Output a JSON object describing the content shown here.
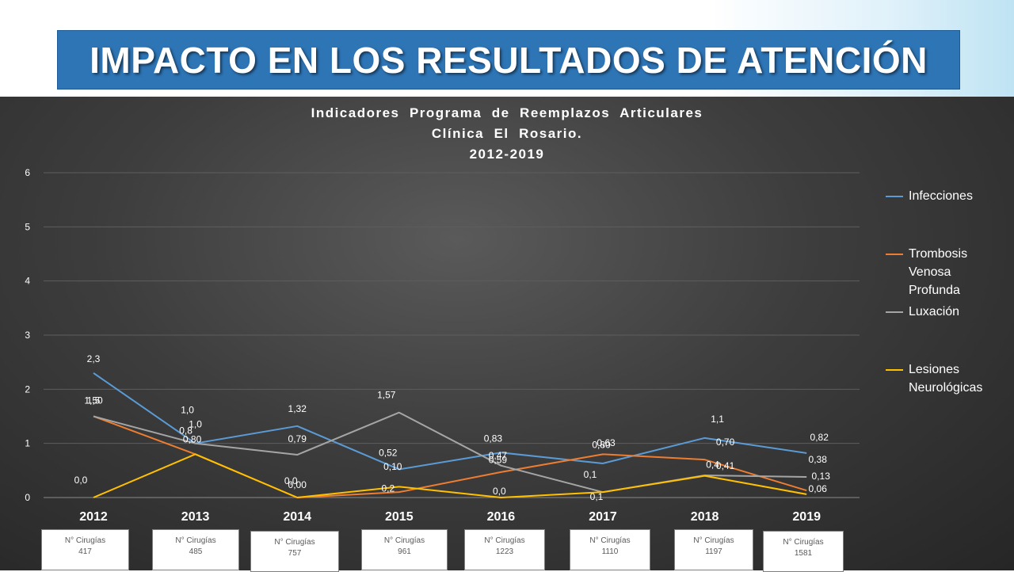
{
  "slide_title": "IMPACTO EN LOS RESULTADOS DE ATENCIÓN",
  "chart_data": {
    "type": "line",
    "title_lines": [
      "Indicadores  Programa  de  Reemplazos  Articulares",
      "Clínica  El  Rosario.",
      "2012-2019"
    ],
    "categories": [
      "2012",
      "2013",
      "2014",
      "2015",
      "2016",
      "2017",
      "2018",
      "2019"
    ],
    "y_ticks": [
      "0",
      "1",
      "2",
      "3",
      "4",
      "5",
      "6"
    ],
    "ylim": [
      0,
      6
    ],
    "grid": true,
    "legend_position": "right",
    "series": [
      {
        "name": "Infecciones",
        "color": "#5b9bd5",
        "values": [
          2.3,
          1.0,
          1.32,
          0.52,
          0.83,
          0.63,
          1.1,
          0.82
        ],
        "labels": [
          "2,3",
          "1,0",
          "1,32",
          "0,52",
          "0,83",
          "0,63",
          "1,1",
          "0,82"
        ]
      },
      {
        "name": "Trombosis Venosa Profunda",
        "color": "#ed7d31",
        "values": [
          1.5,
          0.8,
          0.0,
          0.1,
          0.47,
          0.8,
          0.7,
          0.13
        ],
        "labels": [
          "1,5",
          "0,8",
          "0,0",
          "0,10",
          "0,47",
          "0,80",
          "0,70",
          "0,13"
        ]
      },
      {
        "name": "Luxación",
        "color": "#a5a5a5",
        "values": [
          1.5,
          1.0,
          0.79,
          1.57,
          0.59,
          0.1,
          0.41,
          0.38
        ],
        "labels": [
          "1,50",
          "1,0",
          "0,79",
          "1,57",
          "0,59",
          "0,1",
          "0,41",
          "0,38"
        ]
      },
      {
        "name": "Lesiones Neurológicas",
        "color": "#ffc000",
        "values": [
          0.0,
          0.8,
          0.0,
          0.2,
          0.0,
          0.1,
          0.4,
          0.06
        ],
        "labels": [
          "0,0",
          "0,80",
          "0,00",
          "0,2",
          "0,0",
          "0,1",
          "0,4",
          "0,06"
        ]
      }
    ]
  },
  "legend": {
    "items": [
      {
        "lines": [
          "Infecciones"
        ],
        "color": "#5b9bd5"
      },
      {
        "lines": [
          "Trombosis",
          "Venosa",
          "Profunda"
        ],
        "color": "#ed7d31"
      },
      {
        "lines": [
          "Luxación"
        ],
        "color": "#a5a5a5"
      },
      {
        "lines": [
          "Lesiones",
          "Neurológicas"
        ],
        "color": "#ffc000"
      }
    ]
  },
  "surgeries": {
    "label": "N° Cirugías",
    "counts": [
      "417",
      "485",
      "757",
      "961",
      "1223",
      "1110",
      "1197",
      "1581"
    ]
  }
}
